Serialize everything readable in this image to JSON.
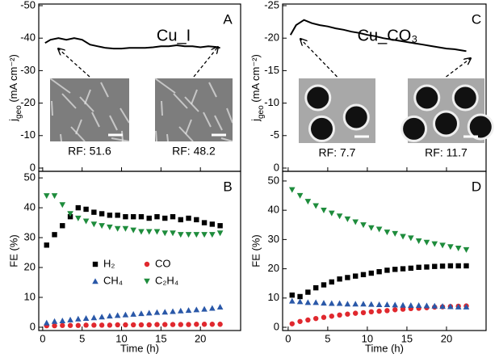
{
  "chart_data": [
    {
      "type": "line",
      "panel_label": "A",
      "title": "Cu_I",
      "ylabel_parts": [
        "j",
        "geo",
        " (mA cm⁻²)"
      ],
      "x": [
        0.3,
        1,
        2,
        3,
        4,
        5,
        6,
        7,
        8,
        9,
        10,
        11,
        12,
        13,
        14,
        15,
        16,
        17,
        18,
        19,
        20,
        21,
        22,
        22.5
      ],
      "series": [
        {
          "color": "#000000",
          "values": [
            -38.5,
            -39.5,
            -40,
            -39.5,
            -40,
            -39.5,
            -38,
            -37.5,
            -37,
            -36.8,
            -36.8,
            -37,
            -37,
            -37,
            -37.2,
            -37.5,
            -37.5,
            -37.8,
            -37.5,
            -37.5,
            -37.2,
            -37.5,
            -37.3,
            -37
          ]
        }
      ],
      "xlim": [
        -0.5,
        25.1
      ],
      "xticks": [
        0,
        5,
        10,
        15,
        20
      ],
      "ylim": [
        1,
        -50.5
      ],
      "yticks": [
        -50,
        -40,
        -30,
        -20,
        -10,
        0
      ],
      "annotations": [
        "RF: 51.6",
        "RF: 48.2"
      ]
    },
    {
      "type": "scatter",
      "panel_label": "B",
      "xlabel": "Time (h)",
      "ylabel": "FE (%)",
      "x": [
        0.5,
        1.5,
        2.5,
        3.5,
        4.5,
        5.5,
        6.5,
        7.5,
        8.5,
        9.5,
        10.5,
        11.5,
        12.5,
        13.5,
        14.5,
        15.5,
        16.5,
        17.5,
        18.5,
        19.5,
        20.5,
        21.5,
        22.5
      ],
      "series": [
        {
          "name": "H₂",
          "color": "#000000",
          "marker": "square",
          "values": [
            27.5,
            31,
            34,
            37,
            40,
            39.5,
            38.5,
            38,
            37.5,
            37.5,
            37,
            37,
            37,
            36.5,
            37,
            36.5,
            37,
            36,
            36.5,
            36,
            35,
            34.5,
            34
          ]
        },
        {
          "name": "CO",
          "color": "#e0282e",
          "marker": "circle",
          "values": [
            0.5,
            0.5,
            0.6,
            0.6,
            0.6,
            0.7,
            0.7,
            0.7,
            0.7,
            0.8,
            0.8,
            0.8,
            0.8,
            0.8,
            0.9,
            0.9,
            0.9,
            0.9,
            0.9,
            1,
            1,
            1,
            1
          ]
        },
        {
          "name": "CH₄",
          "color": "#2a58a8",
          "marker": "triangle-up",
          "values": [
            1.5,
            2,
            2.2,
            2.5,
            2.8,
            3,
            3.2,
            3.5,
            3.8,
            4,
            4.2,
            4.4,
            4.6,
            4.8,
            5,
            5.1,
            5.3,
            5.5,
            5.7,
            5.9,
            6.1,
            6.4,
            6.8
          ]
        },
        {
          "name": "C₂H₄",
          "color": "#1e8c3c",
          "marker": "triangle-down",
          "values": [
            44,
            44,
            41,
            38,
            36.5,
            35.5,
            34.5,
            34,
            33.5,
            33,
            33,
            32.5,
            32,
            32,
            32,
            31.5,
            31.5,
            31,
            31,
            31,
            31,
            31,
            31.5
          ]
        }
      ],
      "legend": true,
      "xlim": [
        -0.5,
        25.1
      ],
      "xticks": [
        0,
        5,
        10,
        15,
        20
      ],
      "ylim": [
        -1.1,
        52.2
      ],
      "yticks": [
        0,
        10,
        20,
        30,
        40,
        50
      ]
    },
    {
      "type": "line",
      "panel_label": "C",
      "title": "Cu_CO₃",
      "ylabel_parts": [
        "j",
        "geo",
        " (mA cm⁻²)"
      ],
      "x": [
        0.3,
        1,
        2,
        3,
        4,
        5,
        6,
        7,
        8,
        9,
        10,
        11,
        12,
        13,
        14,
        15,
        16,
        17,
        18,
        19,
        20,
        21,
        22,
        22.5
      ],
      "series": [
        {
          "color": "#000000",
          "values": [
            -20.5,
            -22,
            -22.8,
            -22.3,
            -22,
            -21.8,
            -21.5,
            -21.3,
            -21,
            -20.8,
            -20.5,
            -20.3,
            -20,
            -19.8,
            -19.6,
            -19.4,
            -19.2,
            -19,
            -18.8,
            -18.6,
            -18.4,
            -18.3,
            -18.1,
            -18
          ]
        }
      ],
      "xlim": [
        -0.7,
        25
      ],
      "xticks": [
        0,
        5,
        10,
        15,
        20
      ],
      "ylim": [
        0.5,
        -25.25
      ],
      "yticks": [
        -25,
        -20,
        -15,
        -10,
        -5,
        0
      ],
      "annotations": [
        "RF: 7.7",
        "RF: 11.7"
      ]
    },
    {
      "type": "scatter",
      "panel_label": "D",
      "xlabel": "Time (h)",
      "ylabel": "FE (%)",
      "x": [
        0.5,
        1.5,
        2.5,
        3.5,
        4.5,
        5.5,
        6.5,
        7.5,
        8.5,
        9.5,
        10.5,
        11.5,
        12.5,
        13.5,
        14.5,
        15.5,
        16.5,
        17.5,
        18.5,
        19.5,
        20.5,
        21.5,
        22.5
      ],
      "series": [
        {
          "color": "#000000",
          "marker": "square",
          "values": [
            11,
            10.5,
            12,
            13.5,
            14.5,
            15.5,
            16.5,
            17,
            17.5,
            18,
            18.5,
            19,
            19.5,
            19.8,
            20,
            20.2,
            20.5,
            20.6,
            20.8,
            20.9,
            21,
            21,
            21
          ]
        },
        {
          "color": "#e0282e",
          "marker": "circle",
          "values": [
            1.2,
            2,
            2.5,
            3,
            3.4,
            3.8,
            4.2,
            4.5,
            4.8,
            5,
            5.3,
            5.5,
            5.7,
            6,
            6.2,
            6.4,
            6.5,
            6.7,
            6.9,
            7,
            7.1,
            7.2,
            7.3
          ]
        },
        {
          "color": "#2a58a8",
          "marker": "triangle-up",
          "values": [
            9,
            8.8,
            8.5,
            8.5,
            8.3,
            8.2,
            8.2,
            8,
            8,
            8,
            7.9,
            7.8,
            7.8,
            7.7,
            7.6,
            7.5,
            7.5,
            7.4,
            7.3,
            7.2,
            7.1,
            7,
            7
          ]
        },
        {
          "color": "#1e8c3c",
          "marker": "triangle-down",
          "values": [
            47,
            45,
            43,
            41.5,
            40,
            39,
            38,
            37,
            36,
            35,
            34,
            33.5,
            32.5,
            32,
            31,
            30.5,
            29.5,
            29,
            28.5,
            28,
            27.5,
            27,
            26.5
          ]
        }
      ],
      "legend": false,
      "xlim": [
        -0.7,
        25
      ],
      "xticks": [
        0,
        5,
        10,
        15,
        20
      ],
      "ylim": [
        -1.1,
        53.3
      ],
      "yticks": [
        0,
        10,
        20,
        30,
        40,
        50
      ]
    }
  ]
}
